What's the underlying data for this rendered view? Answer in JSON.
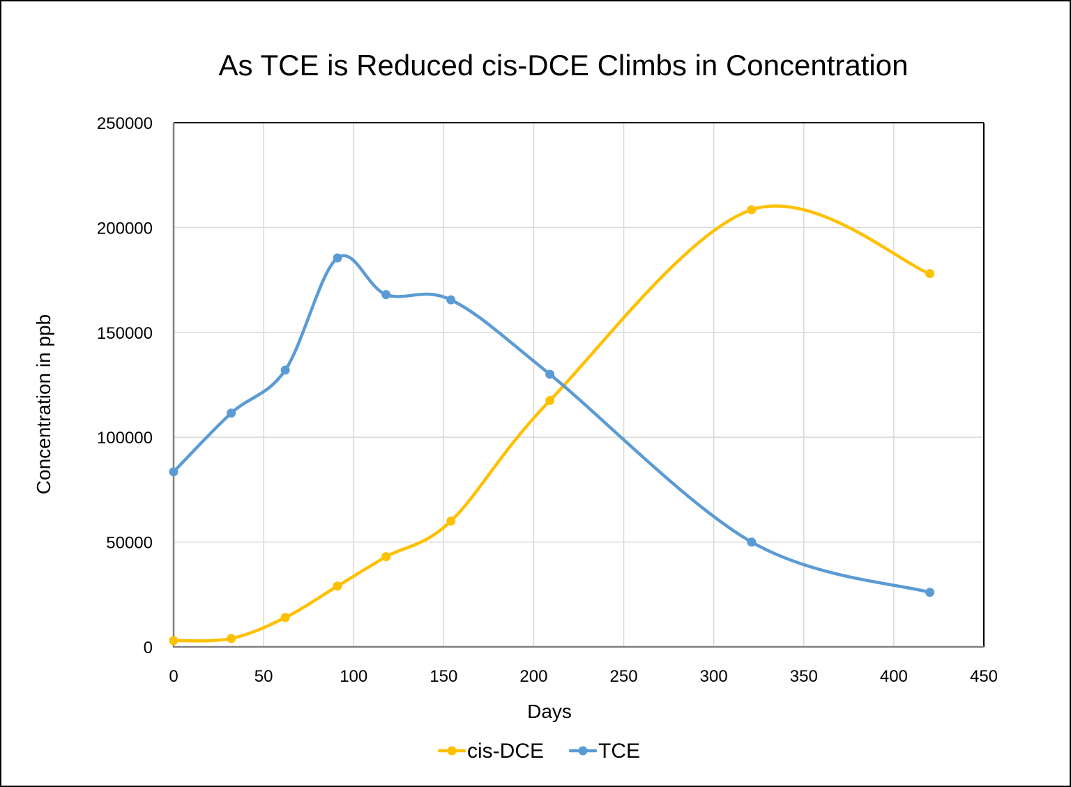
{
  "chart_data": {
    "type": "line",
    "smoothed": true,
    "markers": true,
    "title": "As TCE is Reduced cis-DCE Climbs in Concentration",
    "xlabel": "Days",
    "ylabel": "Concentration in ppb",
    "xlim": [
      0,
      450
    ],
    "ylim": [
      0,
      250000
    ],
    "x_ticks": [
      0,
      50,
      100,
      150,
      200,
      250,
      300,
      350,
      400,
      450
    ],
    "y_ticks": [
      0,
      50000,
      100000,
      150000,
      200000,
      250000
    ],
    "x_tick_labels": [
      "0",
      "50",
      "100",
      "150",
      "200",
      "250",
      "300",
      "350",
      "400",
      "450"
    ],
    "y_tick_labels": [
      "0",
      "50000",
      "100000",
      "150000",
      "200000",
      "250000"
    ],
    "grid": true,
    "legend_position": "bottom",
    "x": [
      0,
      32,
      62,
      91,
      118,
      154,
      209,
      321,
      420
    ],
    "series": [
      {
        "name": "cis-DCE",
        "color": "#FFC000",
        "values": [
          3000,
          4000,
          14000,
          29000,
          43000,
          60000,
          117500,
          208500,
          178000
        ]
      },
      {
        "name": "TCE",
        "color": "#5B9BD5",
        "values": [
          83500,
          111500,
          132000,
          185500,
          168000,
          165500,
          130000,
          50000,
          26000
        ]
      }
    ]
  }
}
